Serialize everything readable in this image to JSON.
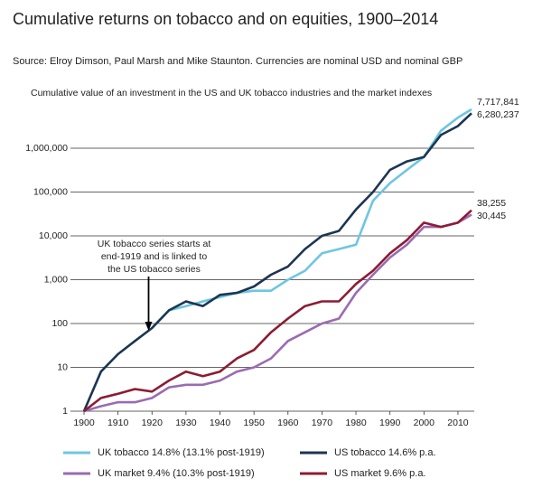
{
  "chart_data": {
    "type": "line",
    "title": "Cumulative returns on tobacco and on equities, 1900–2014",
    "subtitle": "Source: Elroy Dimson, Paul Marsh and Mike Staunton. Currencies are nominal USD and nominal GBP",
    "y_axis_label": "Cumulative value of an investment in the US and UK tobacco industries and the market indexes",
    "annotation": [
      "UK tobacco series starts at",
      "end-1919 and is linked to",
      "the US tobacco series"
    ],
    "annotation_x": 1919,
    "log_scale": true,
    "grid": true,
    "x": [
      1900,
      1905,
      1910,
      1915,
      1920,
      1925,
      1930,
      1935,
      1940,
      1945,
      1950,
      1955,
      1960,
      1965,
      1970,
      1975,
      1980,
      1985,
      1990,
      1995,
      2000,
      2005,
      2010,
      2014
    ],
    "xlim": [
      1900,
      2014
    ],
    "xticks": [
      1900,
      1910,
      1920,
      1930,
      1940,
      1950,
      1960,
      1970,
      1980,
      1990,
      2000,
      2010
    ],
    "ylim": [
      1,
      10000000
    ],
    "yticks": [
      1,
      10,
      100,
      {
        "value": 1000,
        "label": "1,000"
      },
      {
        "value": 10000,
        "label": "10,000"
      },
      {
        "value": 100000,
        "label": "100,000"
      },
      {
        "value": 1000000,
        "label": "1,000,000"
      }
    ],
    "series": [
      {
        "name": "UK tobacco 14.8% (13.1% post-1919)",
        "color": "#6ec6e0",
        "values": [
          null,
          null,
          null,
          null,
          80,
          200,
          250,
          320,
          400,
          500,
          560,
          560,
          1000,
          1600,
          4000,
          5000,
          6300,
          63000,
          160000,
          320000,
          630000,
          2500000,
          5000000,
          7717841
        ],
        "value_labels": [
          null,
          null,
          null,
          null,
          null,
          null,
          null,
          null,
          null,
          null,
          null,
          null,
          null,
          null,
          null,
          null,
          null,
          null,
          null,
          null,
          null,
          null,
          null,
          "7,717,841"
        ]
      },
      {
        "name": "US tobacco 14.6% p.a.",
        "color": "#1c3552",
        "values": [
          1,
          8,
          20,
          40,
          79,
          200,
          320,
          250,
          450,
          500,
          700,
          1300,
          2000,
          5000,
          10000,
          13000,
          40000,
          100000,
          320000,
          500000,
          630000,
          2000000,
          3200000,
          6280237
        ],
        "value_labels": [
          null,
          null,
          null,
          null,
          null,
          null,
          null,
          null,
          null,
          null,
          null,
          null,
          null,
          null,
          null,
          null,
          null,
          null,
          null,
          null,
          null,
          null,
          null,
          "6,280,237"
        ]
      },
      {
        "name": "UK market 9.4% (10.3% post-1919)",
        "color": "#9a6bb2",
        "values": [
          1,
          1.3,
          1.6,
          1.6,
          2,
          3.5,
          4,
          4,
          5,
          8,
          10,
          16,
          40,
          63,
          100,
          130,
          500,
          1300,
          3200,
          6300,
          16000,
          16000,
          20000,
          30445
        ],
        "value_labels": [
          null,
          null,
          null,
          null,
          null,
          null,
          null,
          null,
          null,
          null,
          null,
          null,
          null,
          null,
          null,
          null,
          null,
          null,
          null,
          null,
          null,
          null,
          null,
          "30,445"
        ]
      },
      {
        "name": "US market 9.6% p.a.",
        "color": "#8c1c33",
        "values": [
          1,
          2,
          2.5,
          3.2,
          2.8,
          5,
          8,
          6.3,
          8,
          16,
          25,
          63,
          130,
          250,
          320,
          320,
          800,
          1600,
          4000,
          8000,
          20000,
          16000,
          20000,
          38255
        ],
        "value_labels": [
          null,
          null,
          null,
          null,
          null,
          null,
          null,
          null,
          null,
          null,
          null,
          null,
          null,
          null,
          null,
          null,
          null,
          null,
          null,
          null,
          null,
          null,
          null,
          "38,255"
        ]
      }
    ]
  }
}
